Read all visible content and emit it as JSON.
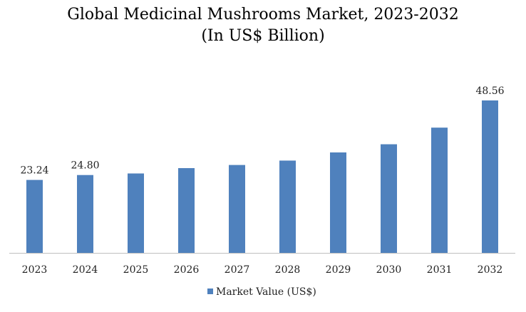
{
  "chart_data": {
    "type": "bar",
    "title": "Global Medicinal Mushrooms Market, 2023-2032",
    "subtitle": "(In US$ Billion)",
    "categories": [
      "2023",
      "2024",
      "2025",
      "2026",
      "2027",
      "2028",
      "2029",
      "2030",
      "2031",
      "2032"
    ],
    "series": [
      {
        "name": "Market Value (US$)",
        "values": [
          23.24,
          24.8,
          25.3,
          27.0,
          28.0,
          29.4,
          32.0,
          34.6,
          39.9,
          48.56
        ],
        "color": "#4f81bd"
      }
    ],
    "data_labels": [
      "23.24",
      "24.80",
      "",
      "",
      "",
      "",
      "",
      "",
      "",
      "48.56"
    ],
    "ylim": [
      0,
      50
    ],
    "grid": false,
    "legend_position": "bottom"
  }
}
